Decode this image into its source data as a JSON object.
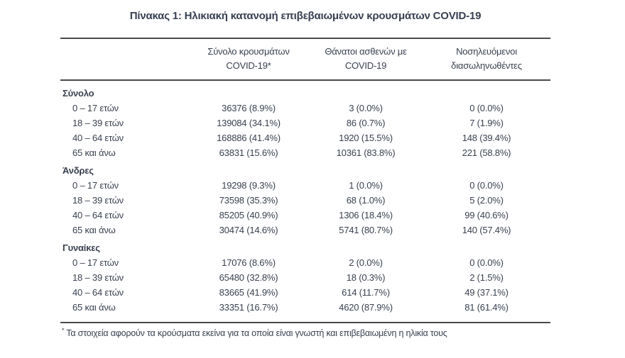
{
  "title": "Πίνακας 1: Ηλικιακή κατανομή επιβεβαιωμένων κρουσμάτων COVID-19",
  "table": {
    "header": {
      "cols": [
        {
          "line1": "Σύνολο κρουσμάτων",
          "line2": "COVID-19*"
        },
        {
          "line1": "Θάνατοι ασθενών με",
          "line2": "COVID-19"
        },
        {
          "line1": "Νοσηλευόμενοι",
          "line2": "διασωληνωθέντες"
        }
      ]
    },
    "sections": [
      {
        "name": "Σύνολο",
        "rows": [
          {
            "label": "0 – 17 ετών",
            "cases": "36376 (8.9%)",
            "deaths": "3 (0.0%)",
            "intubated": "0 (0.0%)"
          },
          {
            "label": "18 – 39 ετών",
            "cases": "139084 (34.1%)",
            "deaths": "86 (0.7%)",
            "intubated": "7 (1.9%)"
          },
          {
            "label": "40 – 64 ετών",
            "cases": "168886 (41.4%)",
            "deaths": "1920 (15.5%)",
            "intubated": "148 (39.4%)"
          },
          {
            "label": "65 και άνω",
            "cases": "63831 (15.6%)",
            "deaths": "10361 (83.8%)",
            "intubated": "221 (58.8%)"
          }
        ]
      },
      {
        "name": "Άνδρες",
        "rows": [
          {
            "label": "0 – 17 ετών",
            "cases": "19298 (9.3%)",
            "deaths": "1 (0.0%)",
            "intubated": "0 (0.0%)"
          },
          {
            "label": "18 – 39 ετών",
            "cases": "73598 (35.3%)",
            "deaths": "68 (1.0%)",
            "intubated": "5 (2.0%)"
          },
          {
            "label": "40 – 64 ετών",
            "cases": "85205 (40.9%)",
            "deaths": "1306 (18.4%)",
            "intubated": "99 (40.6%)"
          },
          {
            "label": "65 και άνω",
            "cases": "30474 (14.6%)",
            "deaths": "5741 (80.7%)",
            "intubated": "140 (57.4%)"
          }
        ]
      },
      {
        "name": "Γυναίκες",
        "rows": [
          {
            "label": "0 – 17 ετών",
            "cases": "17076 (8.6%)",
            "deaths": "2 (0.0%)",
            "intubated": "0 (0.0%)"
          },
          {
            "label": "18 – 39 ετών",
            "cases": "65480 (32.8%)",
            "deaths": "18 (0.3%)",
            "intubated": "2 (1.5%)"
          },
          {
            "label": "40 – 64 ετών",
            "cases": "83665 (41.9%)",
            "deaths": "614 (11.7%)",
            "intubated": "49 (37.1%)"
          },
          {
            "label": "65 και άνω",
            "cases": "33351 (16.7%)",
            "deaths": "4620 (87.9%)",
            "intubated": "81 (61.4%)"
          }
        ]
      }
    ]
  },
  "footnote": {
    "marker": "*",
    "text": "Τα στοιχεία αφορούν τα κρούσματα εκείνα για τα οποία είναι γνωστή και επιβεβαιωμένη η ηλικία τους"
  }
}
